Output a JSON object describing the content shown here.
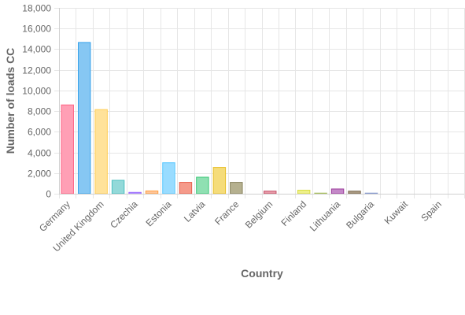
{
  "chart_data": {
    "type": "bar",
    "xlabel": "Country",
    "ylabel": "Number of loads CC",
    "ylim": [
      0,
      18000
    ],
    "y_ticks": [
      "0",
      "2,000",
      "4,000",
      "6,000",
      "8,000",
      "10,000",
      "12,000",
      "14,000",
      "16,000",
      "18,000"
    ],
    "y_tick_values": [
      0,
      2000,
      4000,
      6000,
      8000,
      10000,
      12000,
      14000,
      16000,
      18000
    ],
    "grid": true,
    "x_tick_labels": [
      "Germany",
      "United Kingdom",
      "Czechia",
      "Estonia",
      "Latvia",
      "France",
      "Belgium",
      "Finland",
      "Lithuania",
      "Bulgaria",
      "Kuwait",
      "Spain"
    ],
    "categories": [
      "Germany",
      "",
      "United Kingdom",
      "",
      "Czechia",
      "",
      "Estonia",
      "",
      "Latvia",
      "",
      "France",
      "",
      "Belgium",
      "",
      "Finland",
      "",
      "Lithuania",
      "",
      "Bulgaria",
      "",
      "Kuwait",
      "",
      "Spain",
      ""
    ],
    "values": [
      8600,
      14650,
      8150,
      1300,
      130,
      270,
      3000,
      1100,
      1600,
      2550,
      1100,
      0,
      250,
      0,
      340,
      60,
      460,
      250,
      60,
      0,
      0,
      0,
      0,
      0
    ],
    "colors": [
      {
        "fill": "#ff9fb5",
        "stroke": "#ff6384"
      },
      {
        "fill": "#86c7f3",
        "stroke": "#36a2eb"
      },
      {
        "fill": "#ffe29a",
        "stroke": "#ffce56"
      },
      {
        "fill": "#93d9d9",
        "stroke": "#4bc0c0"
      },
      {
        "fill": "#c5b3ff",
        "stroke": "#9966ff"
      },
      {
        "fill": "#ffc598",
        "stroke": "#ff9f40"
      },
      {
        "fill": "#99dcff",
        "stroke": "#56c7ff"
      },
      {
        "fill": "#f59a8a",
        "stroke": "#e8604c"
      },
      {
        "fill": "#8fe0b2",
        "stroke": "#3ec87a"
      },
      {
        "fill": "#f5dc7a",
        "stroke": "#e8c02a"
      },
      {
        "fill": "#b5b08f",
        "stroke": "#8a8560"
      },
      {
        "fill": "#e8a0b0",
        "stroke": "#c26078"
      },
      {
        "fill": "#e89aa8",
        "stroke": "#c25068"
      },
      {
        "fill": "#ffd9b0",
        "stroke": "#f0a860"
      },
      {
        "fill": "#eef08a",
        "stroke": "#d8dc40"
      },
      {
        "fill": "#cfe0a0",
        "stroke": "#a8c060"
      },
      {
        "fill": "#c488c8",
        "stroke": "#9c3c9c"
      },
      {
        "fill": "#a89880",
        "stroke": "#7c6a50"
      },
      {
        "fill": "#bcc8e8",
        "stroke": "#8a9cd0"
      },
      {
        "fill": "#cccccc",
        "stroke": "#aaaaaa"
      },
      {
        "fill": "#cccccc",
        "stroke": "#aaaaaa"
      },
      {
        "fill": "#cccccc",
        "stroke": "#aaaaaa"
      },
      {
        "fill": "#cccccc",
        "stroke": "#aaaaaa"
      },
      {
        "fill": "#cccccc",
        "stroke": "#aaaaaa"
      }
    ],
    "grid_color": "#e6e6e6",
    "text_color": "#666666"
  }
}
